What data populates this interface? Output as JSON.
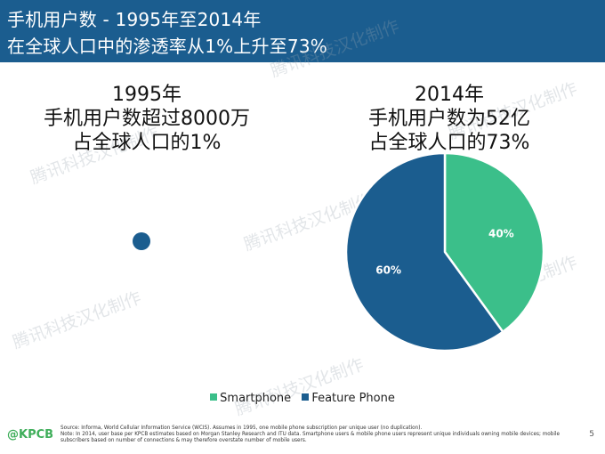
{
  "slide": {
    "title_line1": "手机用户数 - 1995年至2014年",
    "title_line2": "在全球人口中的渗透率从1%上升至73%",
    "page_number": "5",
    "logo": "@KPCB",
    "watermark": "腾讯科技汉化制作"
  },
  "left": {
    "line1": "1995年",
    "line2": "手机用户数超过8000万",
    "line3": "占全球人口的1%"
  },
  "right": {
    "line1": "2014年",
    "line2": "手机用户数为52亿",
    "line3": "占全球人口的73%"
  },
  "legend": {
    "smartphone": "Smartphone",
    "feature_phone": "Feature Phone"
  },
  "footnotes": {
    "source": "Source: Informa, World Cellular Information Service (WCIS). Assumes in 1995, one mobile phone subscription per unique user (no duplication).",
    "note": "Note: In 2014, user base per KPCB estimates based on Morgan Stanley Research and ITU data. Smartphone users & mobile phone users represent unique individuals owning mobile devices; mobile subscribers based on number of connections & may therefore overstate number of mobile users."
  },
  "colors": {
    "smartphone": "#3bbf8a",
    "feature_phone": "#1b5d8f",
    "title_bg": "#1b5d8f"
  },
  "chart_data": [
    {
      "type": "pie",
      "title": "1995年",
      "subtitle": "手机用户数超过8000万 占全球人口的1%",
      "series": [
        {
          "name": "Feature Phone",
          "value": 100
        }
      ],
      "note": "small single-color dot representing 80M users"
    },
    {
      "type": "pie",
      "title": "2014年",
      "subtitle": "手机用户数为52亿 占全球人口的73%",
      "series": [
        {
          "name": "Smartphone",
          "value": 40,
          "label": "40%"
        },
        {
          "name": "Feature Phone",
          "value": 60,
          "label": "60%"
        }
      ]
    }
  ]
}
